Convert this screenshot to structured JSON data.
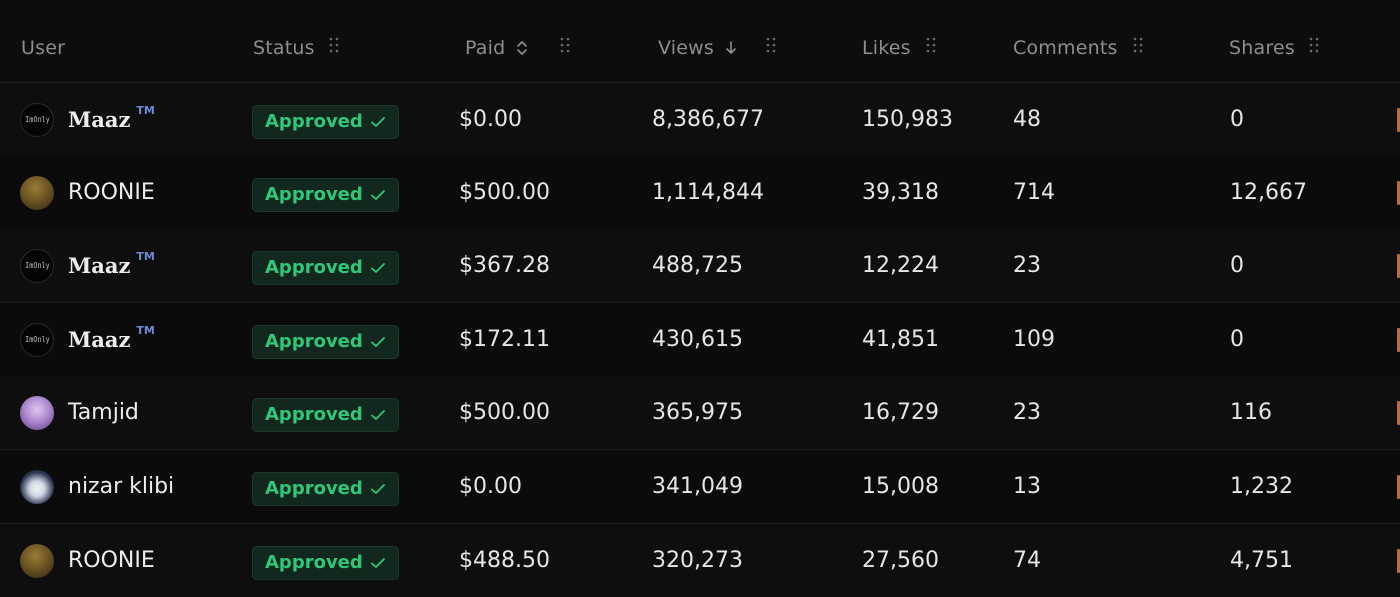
{
  "table": {
    "columns": [
      {
        "key": "user",
        "label": "User"
      },
      {
        "key": "status",
        "label": "Status"
      },
      {
        "key": "paid",
        "label": "Paid"
      },
      {
        "key": "views",
        "label": "Views"
      },
      {
        "key": "likes",
        "label": "Likes"
      },
      {
        "key": "comments",
        "label": "Comments"
      },
      {
        "key": "shares",
        "label": "Shares"
      }
    ],
    "status_check_icon": "check-icon",
    "rows": [
      {
        "avatar": "dark",
        "avatar_text": "ImOnly",
        "user": "Maaz",
        "tm": "TM",
        "bold": true,
        "status": "Approved",
        "paid": "$0.00",
        "views": "8,386,677",
        "likes": "150,983",
        "comments": "48",
        "shares": "0"
      },
      {
        "avatar": "gold",
        "avatar_text": "",
        "user": "ROONIE",
        "tm": "",
        "bold": false,
        "status": "Approved",
        "paid": "$500.00",
        "views": "1,114,844",
        "likes": "39,318",
        "comments": "714",
        "shares": "12,667"
      },
      {
        "avatar": "dark",
        "avatar_text": "ImOnly",
        "user": "Maaz",
        "tm": "TM",
        "bold": true,
        "status": "Approved",
        "paid": "$367.28",
        "views": "488,725",
        "likes": "12,224",
        "comments": "23",
        "shares": "0"
      },
      {
        "avatar": "dark",
        "avatar_text": "ImOnly",
        "user": "Maaz",
        "tm": "TM",
        "bold": true,
        "status": "Approved",
        "paid": "$172.11",
        "views": "430,615",
        "likes": "41,851",
        "comments": "109",
        "shares": "0"
      },
      {
        "avatar": "purple",
        "avatar_text": "",
        "user": "Tamjid",
        "tm": "",
        "bold": false,
        "status": "Approved",
        "paid": "$500.00",
        "views": "365,975",
        "likes": "16,729",
        "comments": "23",
        "shares": "116"
      },
      {
        "avatar": "blue",
        "avatar_text": "",
        "user": "nizar klibi",
        "tm": "",
        "bold": false,
        "status": "Approved",
        "paid": "$0.00",
        "views": "341,049",
        "likes": "15,008",
        "comments": "13",
        "shares": "1,232"
      },
      {
        "avatar": "gold",
        "avatar_text": "",
        "user": "ROONIE",
        "tm": "",
        "bold": false,
        "status": "Approved",
        "paid": "$488.50",
        "views": "320,273",
        "likes": "27,560",
        "comments": "74",
        "shares": "4,751"
      }
    ]
  },
  "colors": {
    "background": "#0c0c0d",
    "badge_text": "#2fc879",
    "badge_bg": "#12281e",
    "header_text": "#8d8d92",
    "tm": "#6f8ad8"
  }
}
